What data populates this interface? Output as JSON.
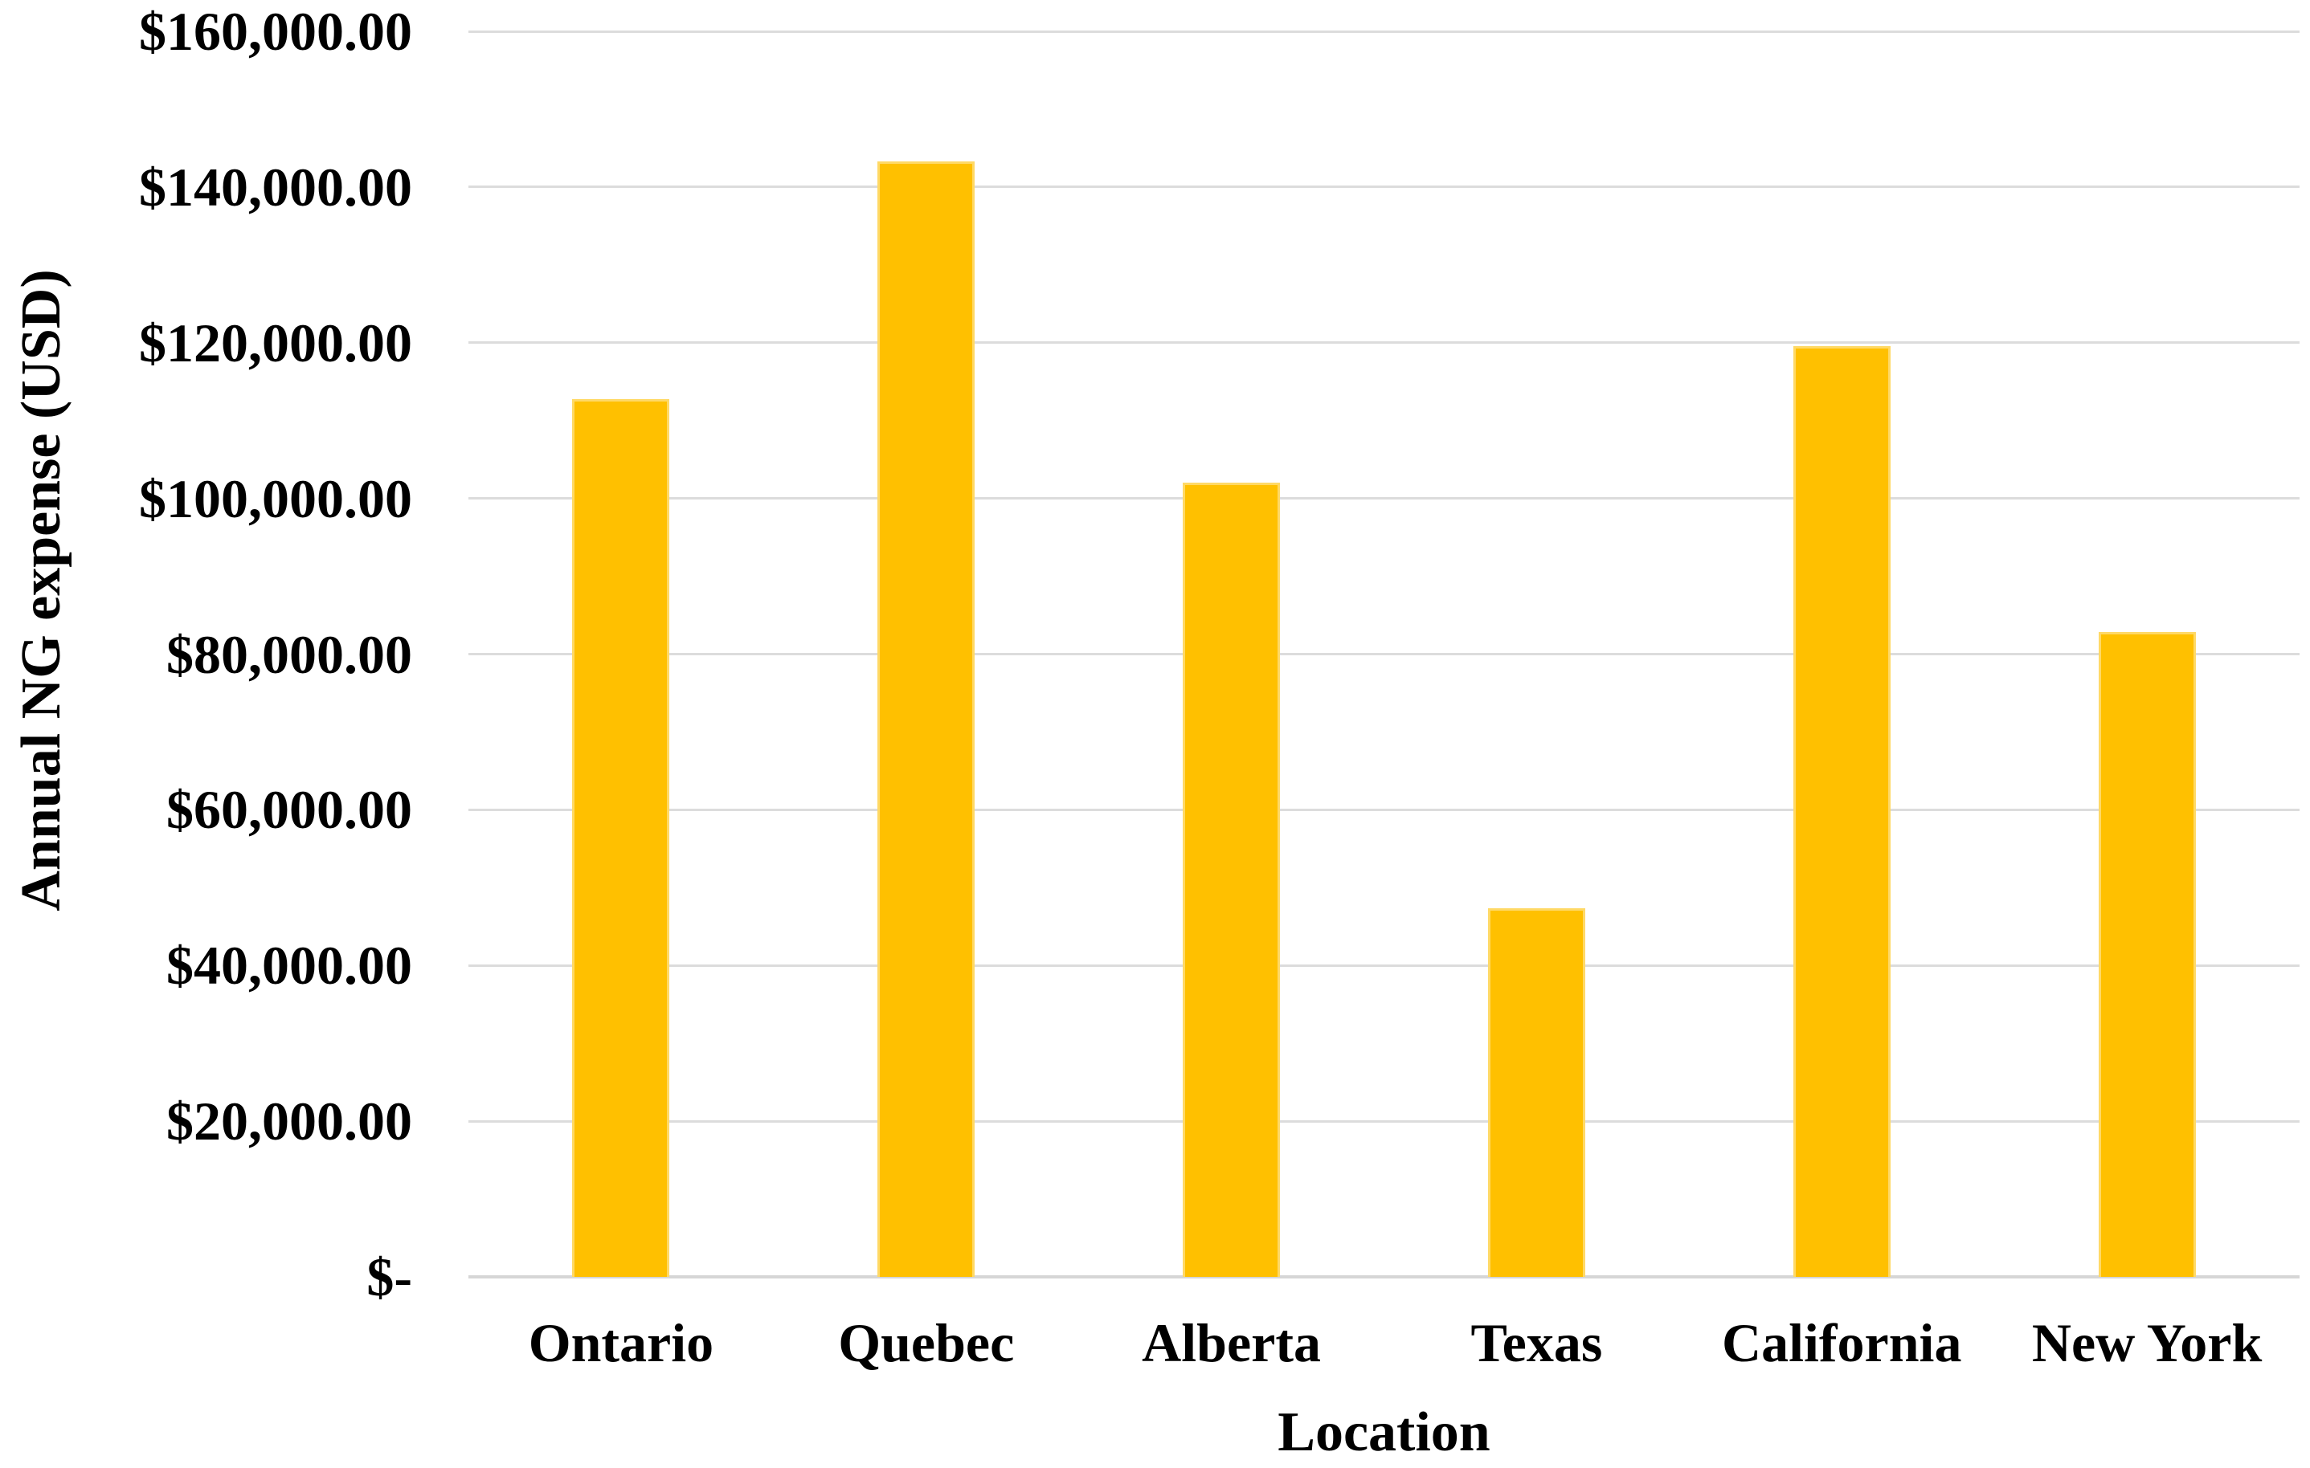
{
  "chart_data": {
    "type": "bar",
    "title": "",
    "categories": [
      "Ontario",
      "Quebec",
      "Alberta",
      "Texas",
      "California",
      "New York"
    ],
    "values": [
      112800,
      143300,
      102000,
      47400,
      119600,
      82800
    ],
    "xlabel": "Location",
    "ylabel": "Annual NG expense (USD)",
    "ylim": [
      0,
      160000
    ],
    "ytick_step": 20000,
    "ytick_labels_bottom_to_top": [
      "$-",
      "$20,000.00",
      "$40,000.00",
      "$60,000.00",
      "$80,000.00",
      "$100,000.00",
      "$120,000.00",
      "$140,000.00",
      "$160,000.00"
    ],
    "grid": true,
    "legend": "none",
    "bar_color": "#FFC000",
    "bar_edge_color": "#FFD966",
    "gridline_color": "#DCDCDC",
    "axis_line_color": "#D6D6D6",
    "text_color": "#000000"
  }
}
